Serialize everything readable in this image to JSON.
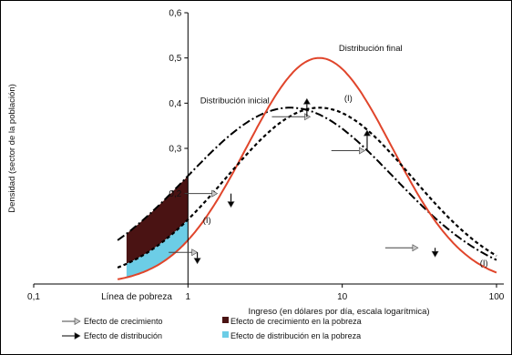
{
  "chart_data": {
    "type": "line",
    "title": "",
    "xlabel": "Ingreso (en dólares por día, escala logarítmica)",
    "ylabel": "Densidad (sector de la población)",
    "xscale": "log",
    "xlim": [
      0.1,
      100
    ],
    "ylim": [
      0,
      0.6
    ],
    "xticks": [
      "0,1",
      "1",
      "10",
      "100"
    ],
    "yticks": [
      "0,2",
      "0,3",
      "0,4",
      "0,5",
      "0,6"
    ],
    "grid": false,
    "poverty_line": {
      "x": 1,
      "label": "Línea de pobreza"
    },
    "series": [
      {
        "name": "Distribución inicial",
        "style": "dash-dot",
        "color": "#000000",
        "shape": {
          "peak_x": 4.6,
          "peak_y": 0.39,
          "sigma_log10": 0.67
        }
      },
      {
        "name": "Distribución final",
        "style": "solid",
        "color": "#e0452b",
        "shape": {
          "peak_x": 7.1,
          "peak_y": 0.5,
          "sigma_log10": 0.47
        }
      },
      {
        "name": "(I)",
        "style": "dotted",
        "color": "#000000",
        "shape": {
          "peak_x": 7.1,
          "peak_y": 0.39,
          "sigma_log10": 0.6
        }
      }
    ],
    "annotations": [
      {
        "text": "Distribución inicial",
        "x": 1.2,
        "y": 0.4
      },
      {
        "text": "Distribución final",
        "x": 9.5,
        "y": 0.515
      },
      {
        "text": "(I)",
        "x": 10.3,
        "y": 0.405
      },
      {
        "text": "(I)",
        "x": 1.25,
        "y": 0.135
      },
      {
        "text": "(I)",
        "x": 78,
        "y": 0.04
      }
    ],
    "growth_arrows": [
      {
        "x1": 0.95,
        "x2": 1.55,
        "y": 0.2
      },
      {
        "x1": 0.75,
        "x2": 1.15,
        "y": 0.07
      },
      {
        "x1": 3.5,
        "x2": 6.2,
        "y": 0.37
      },
      {
        "x1": 8.5,
        "x2": 14,
        "y": 0.295
      },
      {
        "x1": 19,
        "x2": 31,
        "y": 0.08
      }
    ],
    "distribution_arrows": [
      {
        "x": 1.9,
        "y1": 0.2,
        "y2": 0.17
      },
      {
        "x": 1.15,
        "y1": 0.07,
        "y2": 0.045
      },
      {
        "x": 5.9,
        "y1": 0.37,
        "y2": 0.41
      },
      {
        "x": 14.5,
        "y1": 0.295,
        "y2": 0.34
      },
      {
        "x": 40,
        "y1": 0.08,
        "y2": 0.06
      }
    ],
    "shaded_regions": [
      {
        "name": "Efecto de crecimiento en la pobreza",
        "color": "#4a1313"
      },
      {
        "name": "Efecto de distribución en la pobreza",
        "color": "#6ccde6"
      }
    ],
    "legend": {
      "placement": "bottom",
      "items": [
        {
          "symbol": "gray-arrow",
          "label": "Efecto de crecimiento"
        },
        {
          "symbol": "black-arrow",
          "label": "Efecto de distribución"
        },
        {
          "symbol": "dark-square",
          "label": "Efecto de crecimiento en la pobreza"
        },
        {
          "symbol": "cyan-square",
          "label": "Efecto de distribución en la pobreza"
        }
      ]
    }
  }
}
